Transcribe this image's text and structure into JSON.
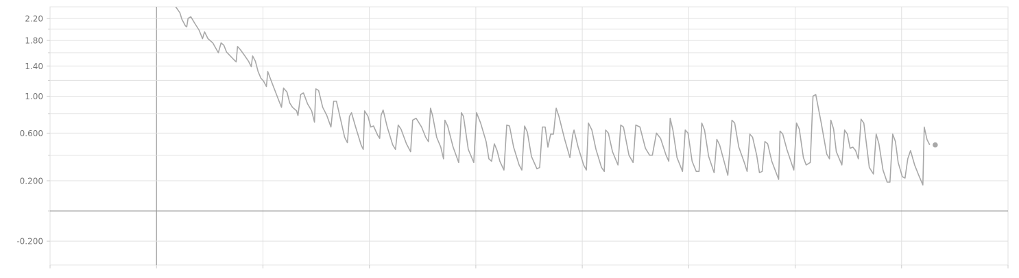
{
  "chart_data": {
    "type": "line",
    "yscale": "symlog",
    "grid": true,
    "xlim": [
      -155,
      1240
    ],
    "xticks": [
      -155,
      0,
      155,
      310,
      465,
      620,
      775,
      930,
      1085,
      1240
    ],
    "ylim": [
      -0.386,
      2.43
    ],
    "yticks": [
      {
        "value": 2.2,
        "label": "2.20"
      },
      {
        "value": 1.8,
        "label": "1.80"
      },
      {
        "value": 1.4,
        "label": "1.40"
      },
      {
        "value": 1.0,
        "label": "1.00"
      },
      {
        "value": 0.6,
        "label": "0.600"
      },
      {
        "value": 0.2,
        "label": "0.200"
      },
      {
        "value": -0.2,
        "label": "-0.200"
      }
    ],
    "yminor": [
      2.0,
      1.6,
      1.2,
      0.8,
      0.4,
      0
    ],
    "series": [
      {
        "color": "#a8a8a8",
        "x": [
          27,
          34,
          37,
          42,
          44,
          46,
          50,
          56,
          62,
          67,
          70,
          75,
          82,
          90,
          94,
          98,
          102,
          112,
          116,
          118,
          122,
          128,
          134,
          138,
          140,
          144,
          148,
          152,
          156,
          160,
          162,
          168,
          172,
          178,
          182,
          185,
          190,
          194,
          198,
          204,
          206,
          210,
          214,
          220,
          226,
          230,
          232,
          236,
          242,
          248,
          254,
          258,
          262,
          268,
          274,
          278,
          281,
          284,
          290,
          298,
          301,
          303,
          308,
          312,
          316,
          322,
          325,
          327,
          330,
          336,
          344,
          348,
          352,
          356,
          364,
          370,
          373,
          378,
          386,
          392,
          396,
          399,
          402,
          408,
          414,
          418,
          420,
          424,
          432,
          440,
          444,
          447,
          454,
          462,
          466,
          472,
          480,
          484,
          488,
          492,
          496,
          500,
          506,
          510,
          514,
          520,
          528,
          532,
          536,
          540,
          546,
          554,
          558,
          562,
          566,
          570,
          574,
          578,
          582,
          586,
          594,
          602,
          606,
          608,
          614,
          622,
          626,
          629,
          634,
          640,
          648,
          652,
          654,
          658,
          664,
          672,
          676,
          680,
          688,
          694,
          698,
          704,
          712,
          718,
          722,
          728,
          734,
          742,
          746,
          748,
          752,
          758,
          766,
          770,
          774,
          780,
          786,
          790,
          794,
          798,
          804,
          812,
          816,
          820,
          826,
          832,
          838,
          842,
          848,
          856,
          860,
          864,
          868,
          874,
          878,
          882,
          886,
          890,
          896,
          906,
          908,
          912,
          918,
          928,
          932,
          936,
          942,
          946,
          952,
          956,
          960,
          968,
          976,
          980,
          982,
          986,
          990,
          998,
          1002,
          1006,
          1010,
          1014,
          1018,
          1022,
          1026,
          1030,
          1034,
          1038,
          1044,
          1048,
          1052,
          1058,
          1064,
          1068,
          1072,
          1076,
          1080,
          1086,
          1090,
          1094,
          1098,
          1104,
          1110,
          1116,
          1118,
          1122,
          1126
        ],
        "values": [
          2.45,
          2.31,
          2.18,
          2.06,
          2.04,
          2.2,
          2.23,
          2.1,
          1.98,
          1.83,
          1.95,
          1.83,
          1.76,
          1.6,
          1.76,
          1.72,
          1.61,
          1.5,
          1.46,
          1.7,
          1.65,
          1.56,
          1.47,
          1.39,
          1.55,
          1.47,
          1.32,
          1.23,
          1.19,
          1.12,
          1.32,
          1.17,
          1.08,
          0.95,
          0.87,
          1.1,
          1.05,
          0.92,
          0.87,
          0.83,
          0.78,
          1.02,
          1.04,
          0.91,
          0.83,
          0.71,
          1.09,
          1.07,
          0.87,
          0.78,
          0.66,
          0.94,
          0.94,
          0.74,
          0.56,
          0.51,
          0.77,
          0.81,
          0.66,
          0.49,
          0.45,
          0.83,
          0.77,
          0.66,
          0.67,
          0.58,
          0.55,
          0.78,
          0.84,
          0.66,
          0.49,
          0.45,
          0.68,
          0.64,
          0.5,
          0.43,
          0.73,
          0.75,
          0.66,
          0.56,
          0.52,
          0.86,
          0.78,
          0.56,
          0.47,
          0.37,
          0.73,
          0.67,
          0.47,
          0.34,
          0.81,
          0.77,
          0.45,
          0.34,
          0.81,
          0.7,
          0.52,
          0.37,
          0.35,
          0.5,
          0.44,
          0.35,
          0.28,
          0.68,
          0.67,
          0.47,
          0.32,
          0.28,
          0.67,
          0.61,
          0.39,
          0.29,
          0.3,
          0.66,
          0.66,
          0.47,
          0.59,
          0.59,
          0.86,
          0.77,
          0.55,
          0.38,
          0.58,
          0.63,
          0.47,
          0.32,
          0.28,
          0.7,
          0.63,
          0.45,
          0.3,
          0.27,
          0.63,
          0.6,
          0.43,
          0.32,
          0.68,
          0.66,
          0.4,
          0.34,
          0.68,
          0.66,
          0.46,
          0.4,
          0.4,
          0.6,
          0.55,
          0.4,
          0.35,
          0.75,
          0.63,
          0.38,
          0.27,
          0.63,
          0.6,
          0.35,
          0.27,
          0.27,
          0.7,
          0.63,
          0.39,
          0.26,
          0.54,
          0.49,
          0.36,
          0.24,
          0.73,
          0.7,
          0.47,
          0.34,
          0.27,
          0.59,
          0.56,
          0.4,
          0.26,
          0.27,
          0.52,
          0.5,
          0.35,
          0.21,
          0.62,
          0.59,
          0.45,
          0.28,
          0.7,
          0.64,
          0.38,
          0.32,
          0.34,
          1.0,
          1.02,
          0.7,
          0.41,
          0.37,
          0.73,
          0.64,
          0.43,
          0.32,
          0.63,
          0.59,
          0.46,
          0.47,
          0.44,
          0.37,
          0.74,
          0.7,
          0.49,
          0.3,
          0.25,
          0.59,
          0.5,
          0.28,
          0.19,
          0.19,
          0.59,
          0.52,
          0.34,
          0.23,
          0.22,
          0.37,
          0.44,
          0.32,
          0.24,
          0.17,
          0.66,
          0.54,
          0.49
        ]
      }
    ]
  }
}
